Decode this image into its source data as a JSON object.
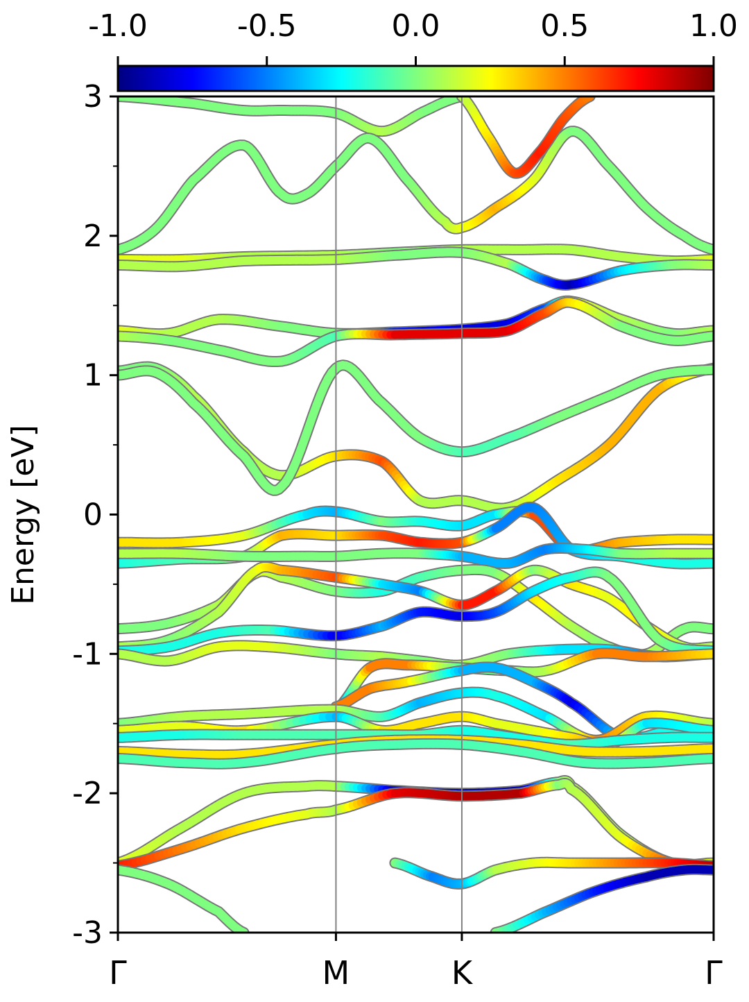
{
  "chart_data": {
    "type": "line",
    "subtype": "band-structure with projected color",
    "ylabel": "Energy [eV]",
    "ylim": [
      -3,
      3
    ],
    "y_ticks": [
      3,
      2,
      1,
      0,
      -1,
      -2,
      -3
    ],
    "y_tick_labels": [
      "3",
      "2",
      "1",
      "0",
      "-1",
      "-2",
      "-3"
    ],
    "x_ticks": [
      0,
      1.732,
      2.732,
      4.732
    ],
    "x_tick_labels": [
      "Γ",
      "M",
      "K",
      "Γ"
    ],
    "xlim": [
      0,
      4.732
    ],
    "high_symmetry_lines": [
      1.732,
      2.732
    ],
    "colorbar": {
      "range": [
        -1.0,
        1.0
      ],
      "ticks": [
        -1.0,
        -0.5,
        0.0,
        0.5,
        1.0
      ],
      "tick_labels": [
        "-1.0",
        "-0.5",
        "0.0",
        "0.5",
        "1.0"
      ],
      "colormap": "jet",
      "stops": [
        "#00007f",
        "#0000ff",
        "#007fff",
        "#00ffff",
        "#7fff7f",
        "#ffff00",
        "#ff7f00",
        "#ff0000",
        "#7f0000"
      ]
    },
    "line_color": "#777777",
    "series": [
      {
        "x": [
          0,
          0.6,
          1.0,
          1.35,
          1.732,
          2.1,
          2.45,
          2.732
        ],
        "y": [
          3.0,
          2.95,
          2.9,
          2.9,
          2.88,
          2.75,
          2.9,
          3.0
        ],
        "c": [
          0.0,
          0.0,
          0.0,
          0.0,
          0.0,
          0.1,
          0.0,
          0.0
        ]
      },
      {
        "x": [
          0,
          0.3,
          0.6,
          1.0,
          1.3,
          1.5,
          1.732,
          2.0,
          2.3,
          2.6,
          2.732,
          3.0,
          3.3,
          3.6,
          3.9,
          4.2,
          4.5,
          4.732
        ],
        "y": [
          1.9,
          2.05,
          2.4,
          2.65,
          2.3,
          2.3,
          2.5,
          2.7,
          2.4,
          2.1,
          2.06,
          2.2,
          2.4,
          2.75,
          2.5,
          2.2,
          2.0,
          1.9
        ],
        "c": [
          0.0,
          0.0,
          0.0,
          0.0,
          0.0,
          0.0,
          0.0,
          0.0,
          0.0,
          0.1,
          0.2,
          0.4,
          0.2,
          0.0,
          0.0,
          0.0,
          0.0,
          0.0
        ]
      },
      {
        "x": [
          2.732,
          2.95,
          3.15,
          3.35,
          3.55,
          3.75
        ],
        "y": [
          3.0,
          2.7,
          2.45,
          2.6,
          2.85,
          3.0
        ],
        "c": [
          0.1,
          0.3,
          0.6,
          0.7,
          0.6,
          0.5
        ]
      },
      {
        "x": [
          0,
          0.5,
          1.0,
          1.732,
          2.2,
          2.732,
          3.2,
          3.6,
          4.0,
          4.4,
          4.732
        ],
        "y": [
          1.83,
          1.83,
          1.85,
          1.86,
          1.88,
          1.9,
          1.9,
          1.9,
          1.85,
          1.82,
          1.83
        ],
        "c": [
          0.2,
          0.2,
          0.1,
          0.1,
          0.0,
          0.1,
          0.1,
          0.1,
          0.1,
          0.1,
          0.2
        ]
      },
      {
        "x": [
          0,
          0.5,
          1.0,
          1.732,
          2.2,
          2.732,
          3.1,
          3.4,
          3.6,
          4.0,
          4.4,
          4.732
        ],
        "y": [
          1.79,
          1.78,
          1.82,
          1.83,
          1.86,
          1.88,
          1.8,
          1.68,
          1.65,
          1.75,
          1.79,
          1.79
        ],
        "c": [
          0.1,
          0.1,
          0.1,
          0.1,
          0.0,
          0.0,
          0.1,
          -0.6,
          -0.9,
          -0.3,
          0.0,
          0.1
        ]
      },
      {
        "x": [
          0,
          0.4,
          0.8,
          1.3,
          1.732,
          2.2,
          2.732,
          3.1,
          3.4,
          3.6,
          4.0,
          4.4,
          4.732
        ],
        "y": [
          1.32,
          1.3,
          1.4,
          1.35,
          1.3,
          1.31,
          1.33,
          1.37,
          1.48,
          1.53,
          1.4,
          1.3,
          1.32
        ],
        "c": [
          0.2,
          0.1,
          0.1,
          0.0,
          0.0,
          -0.7,
          -0.8,
          -0.8,
          -0.6,
          0.2,
          0.1,
          0.0,
          0.1
        ]
      },
      {
        "x": [
          0,
          0.4,
          0.8,
          1.3,
          1.732,
          2.2,
          2.732,
          3.1,
          3.4,
          3.6,
          4.0,
          4.4,
          4.732
        ],
        "y": [
          1.28,
          1.25,
          1.18,
          1.1,
          1.28,
          1.29,
          1.3,
          1.32,
          1.45,
          1.52,
          1.35,
          1.25,
          1.28
        ],
        "c": [
          0.1,
          0.0,
          0.0,
          0.0,
          -0.1,
          0.8,
          0.8,
          0.8,
          0.6,
          0.3,
          0.0,
          0.0,
          0.0
        ]
      },
      {
        "x": [
          0,
          0.3,
          0.6,
          1.0,
          1.3,
          1.732,
          2.1,
          2.4,
          2.732,
          3.1,
          3.5,
          3.9,
          4.3,
          4.732
        ],
        "y": [
          1.03,
          1.05,
          0.85,
          0.45,
          0.28,
          0.42,
          0.38,
          0.1,
          0.1,
          0.05,
          0.25,
          0.5,
          0.9,
          1.05
        ],
        "c": [
          0.0,
          0.0,
          0.1,
          0.1,
          0.1,
          0.3,
          0.6,
          0.1,
          0.1,
          0.1,
          0.3,
          0.4,
          0.4,
          0.1
        ]
      },
      {
        "x": [
          0,
          0.3,
          0.6,
          1.0,
          1.3,
          1.732,
          2.1,
          2.4,
          2.732,
          3.1,
          3.5,
          3.9,
          4.3,
          4.732
        ],
        "y": [
          1.0,
          1.02,
          0.8,
          0.42,
          0.2,
          1.05,
          0.8,
          0.55,
          0.45,
          0.55,
          0.7,
          0.85,
          1.0,
          1.04
        ],
        "c": [
          0.0,
          0.0,
          0.0,
          0.0,
          0.0,
          0.0,
          0.0,
          0.0,
          -0.1,
          -0.1,
          0.0,
          0.0,
          0.0,
          0.0
        ]
      },
      {
        "x": [
          0,
          0.5,
          1.0,
          1.5,
          1.732,
          2.1,
          2.4,
          2.732,
          3.0,
          3.3,
          3.6,
          4.0,
          4.4,
          4.732
        ],
        "y": [
          -0.2,
          -0.2,
          -0.15,
          0.0,
          0.02,
          -0.05,
          -0.05,
          -0.08,
          0.0,
          0.0,
          -0.25,
          -0.2,
          -0.18,
          -0.18
        ],
        "c": [
          0.3,
          0.3,
          0.2,
          -0.3,
          -0.4,
          0.0,
          -0.2,
          -0.3,
          -0.3,
          0.6,
          0.6,
          0.4,
          0.3,
          0.3
        ]
      },
      {
        "x": [
          0,
          0.5,
          1.0,
          1.3,
          1.732,
          2.1,
          2.4,
          2.732,
          3.0,
          3.3,
          3.6,
          4.0,
          4.4,
          4.732
        ],
        "y": [
          -0.35,
          -0.32,
          -0.3,
          -0.15,
          -0.15,
          -0.15,
          -0.2,
          -0.2,
          -0.1,
          0.05,
          -0.25,
          -0.3,
          -0.35,
          -0.35
        ],
        "c": [
          -0.2,
          -0.1,
          0.0,
          0.4,
          0.3,
          0.6,
          0.7,
          0.6,
          -0.5,
          -0.5,
          -0.4,
          -0.2,
          -0.2,
          -0.2
        ]
      },
      {
        "x": [
          0,
          0.5,
          1.0,
          1.5,
          1.732,
          2.1,
          2.4,
          2.732,
          3.1,
          3.4,
          3.7,
          4.0,
          4.4,
          4.732
        ],
        "y": [
          -0.28,
          -0.28,
          -0.3,
          -0.3,
          -0.3,
          -0.28,
          -0.28,
          -0.3,
          -0.35,
          -0.25,
          -0.25,
          -0.28,
          -0.28,
          -0.28
        ],
        "c": [
          0.1,
          0.1,
          0.0,
          0.0,
          0.0,
          0.0,
          0.0,
          -0.4,
          -0.4,
          -0.5,
          -0.3,
          0.0,
          0.1,
          0.1
        ]
      },
      {
        "x": [
          0,
          0.4,
          0.8,
          1.1,
          1.3,
          1.732,
          2.1,
          2.4,
          2.732,
          3.0,
          3.3,
          3.6,
          3.9,
          4.2,
          4.5,
          4.732
        ],
        "y": [
          -0.82,
          -0.78,
          -0.65,
          -0.42,
          -0.45,
          -0.55,
          -0.55,
          -0.45,
          -0.4,
          -0.42,
          -0.6,
          -0.8,
          -0.95,
          -1.0,
          -0.82,
          -0.82
        ],
        "c": [
          0.0,
          0.0,
          0.1,
          0.2,
          0.1,
          0.0,
          -0.2,
          -0.1,
          0.0,
          0.0,
          0.3,
          0.1,
          0.0,
          0.1,
          0.0,
          0.0
        ]
      },
      {
        "x": [
          0,
          0.4,
          0.8,
          1.1,
          1.3,
          1.732,
          2.1,
          2.4,
          2.732,
          3.0,
          3.3,
          3.6,
          3.9,
          4.2,
          4.5,
          4.732
        ],
        "y": [
          -0.95,
          -0.9,
          -0.7,
          -0.4,
          -0.4,
          -0.45,
          -0.5,
          -0.55,
          -0.65,
          -0.55,
          -0.4,
          -0.5,
          -0.6,
          -0.8,
          -0.95,
          -0.95
        ],
        "c": [
          0.1,
          0.0,
          0.1,
          0.2,
          0.4,
          0.6,
          -0.3,
          -0.5,
          0.7,
          0.7,
          0.0,
          0.3,
          0.2,
          0.3,
          0.1,
          0.1
        ]
      },
      {
        "x": [
          0,
          0.4,
          0.8,
          1.2,
          1.732,
          2.1,
          2.4,
          2.732,
          3.0,
          3.3,
          3.6,
          3.9,
          4.3,
          4.732
        ],
        "y": [
          -0.98,
          -0.95,
          -0.85,
          -0.83,
          -0.87,
          -0.8,
          -0.7,
          -0.73,
          -0.7,
          -0.55,
          -0.45,
          -0.45,
          -0.9,
          -0.98
        ],
        "c": [
          -0.2,
          -0.2,
          -0.2,
          -0.1,
          -0.8,
          -0.4,
          -0.7,
          -0.8,
          -0.6,
          -0.3,
          -0.2,
          0.0,
          0.0,
          -0.2
        ]
      },
      {
        "x": [
          0,
          0.4,
          0.8,
          1.2,
          1.732,
          2.1,
          2.4,
          2.732,
          3.1,
          3.5,
          3.9,
          4.3,
          4.732
        ],
        "y": [
          -1.0,
          -1.05,
          -0.95,
          -0.95,
          -1.0,
          -1.02,
          -1.05,
          -1.08,
          -1.0,
          -0.97,
          -0.97,
          -1.02,
          -1.0
        ],
        "c": [
          0.1,
          0.1,
          0.2,
          0.2,
          0.0,
          0.1,
          0.0,
          0.1,
          0.0,
          -0.3,
          -0.3,
          -0.6,
          0.0
        ]
      },
      {
        "x": [
          1.732,
          2.0,
          2.3,
          2.732,
          3.1,
          3.4,
          3.8,
          4.2,
          4.732
        ],
        "y": [
          -1.4,
          -1.1,
          -1.08,
          -1.1,
          -1.12,
          -1.12,
          -1.0,
          -1.02,
          -1.0
        ],
        "c": [
          -0.6,
          0.5,
          0.5,
          -0.1,
          0.0,
          0.1,
          0.5,
          0.5,
          0.3
        ]
      },
      {
        "x": [
          1.732,
          2.0,
          2.3,
          2.732,
          3.0,
          3.3,
          3.6,
          4.0,
          4.4,
          4.732
        ],
        "y": [
          -1.38,
          -1.25,
          -1.2,
          -1.12,
          -1.1,
          -1.2,
          -1.35,
          -1.6,
          -1.55,
          -1.55
        ],
        "c": [
          0.5,
          0.5,
          0.3,
          -0.4,
          -0.4,
          -0.4,
          -0.8,
          -0.3,
          -0.2,
          -0.2
        ]
      },
      {
        "x": [
          0,
          0.5,
          1.0,
          1.732,
          2.1,
          2.4,
          2.732,
          3.0,
          3.4,
          3.8,
          4.2,
          4.732
        ],
        "y": [
          -1.5,
          -1.45,
          -1.43,
          -1.4,
          -1.45,
          -1.35,
          -1.28,
          -1.3,
          -1.45,
          -1.62,
          -1.45,
          -1.5
        ],
        "c": [
          0.0,
          0.1,
          0.1,
          0.1,
          -0.1,
          -0.4,
          -0.3,
          -0.2,
          -0.3,
          0.5,
          0.3,
          0.1
        ]
      },
      {
        "x": [
          0,
          0.5,
          1.0,
          1.732,
          2.1,
          2.4,
          2.732,
          3.0,
          3.3,
          3.6,
          3.9,
          4.2,
          4.732
        ],
        "y": [
          -1.55,
          -1.52,
          -1.55,
          -1.45,
          -1.55,
          -1.5,
          -1.45,
          -1.5,
          -1.55,
          -1.6,
          -1.65,
          -1.5,
          -1.55
        ],
        "c": [
          0.2,
          0.2,
          0.3,
          -0.4,
          0.3,
          0.3,
          0.3,
          0.2,
          0.2,
          0.3,
          0.5,
          -0.3,
          -0.2
        ]
      },
      {
        "x": [
          0,
          0.5,
          1.0,
          1.732,
          2.1,
          2.4,
          2.732,
          3.0,
          3.3,
          3.6,
          4.0,
          4.4,
          4.732
        ],
        "y": [
          -1.6,
          -1.58,
          -1.58,
          -1.58,
          -1.58,
          -1.58,
          -1.55,
          -1.58,
          -1.62,
          -1.65,
          -1.62,
          -1.6,
          -1.6
        ],
        "c": [
          -0.2,
          -0.2,
          -0.1,
          -0.1,
          -0.1,
          -0.1,
          -0.2,
          -0.2,
          -0.2,
          -0.1,
          -0.2,
          -0.2,
          -0.2
        ]
      },
      {
        "x": [
          0,
          0.5,
          1.0,
          1.732,
          2.2,
          2.732,
          3.2,
          3.7,
          4.2,
          4.732
        ],
        "y": [
          -1.7,
          -1.72,
          -1.72,
          -1.65,
          -1.62,
          -1.62,
          -1.65,
          -1.7,
          -1.7,
          -1.68
        ],
        "c": [
          0.3,
          0.3,
          0.3,
          0.3,
          0.3,
          0.3,
          0.3,
          0.3,
          0.3,
          0.3
        ]
      },
      {
        "x": [
          0,
          0.5,
          1.0,
          1.732,
          2.2,
          2.732,
          3.2,
          3.7,
          4.2,
          4.732
        ],
        "y": [
          -1.75,
          -1.78,
          -1.78,
          -1.68,
          -1.65,
          -1.65,
          -1.7,
          -1.78,
          -1.78,
          -1.75
        ],
        "c": [
          -0.1,
          -0.1,
          -0.1,
          -0.1,
          -0.1,
          -0.1,
          -0.1,
          -0.1,
          -0.1,
          -0.1
        ]
      },
      {
        "x": [
          0,
          0.5,
          1.0,
          1.5,
          1.732,
          2.2,
          2.732,
          3.2,
          3.5,
          3.6,
          4.0,
          4.4,
          4.732
        ],
        "y": [
          -2.5,
          -2.25,
          -2.0,
          -1.95,
          -1.95,
          -1.98,
          -2.0,
          -1.98,
          -1.92,
          -1.95,
          -2.3,
          -2.5,
          -2.5
        ],
        "c": [
          0.2,
          0.1,
          0.1,
          0.1,
          0.1,
          -0.9,
          -0.9,
          -0.9,
          0.0,
          0.1,
          0.1,
          0.2,
          0.2
        ]
      },
      {
        "x": [
          0,
          0.5,
          1.0,
          1.5,
          1.732,
          2.2,
          2.732,
          3.2,
          3.5,
          3.6,
          4.0,
          4.4,
          4.732
        ],
        "y": [
          -2.52,
          -2.4,
          -2.25,
          -2.15,
          -2.12,
          -2.0,
          -2.02,
          -2.0,
          -1.94,
          -1.97,
          -2.32,
          -2.5,
          -2.52
        ],
        "c": [
          0.7,
          0.5,
          0.3,
          0.2,
          0.1,
          0.8,
          0.9,
          0.9,
          0.0,
          0.1,
          0.2,
          0.6,
          0.8
        ]
      },
      {
        "x": [
          2.2,
          2.5,
          2.732,
          3.0,
          3.3,
          3.6,
          4.0,
          4.4,
          4.732
        ],
        "y": [
          -2.5,
          -2.6,
          -2.65,
          -2.55,
          -2.5,
          -2.5,
          -2.5,
          -2.5,
          -2.52
        ],
        "c": [
          0.0,
          -0.5,
          -0.4,
          0.1,
          0.2,
          0.3,
          0.5,
          0.7,
          0.9
        ]
      },
      {
        "x": [
          3.0,
          3.4,
          3.8,
          4.2,
          4.5,
          4.732
        ],
        "y": [
          -3.0,
          -2.85,
          -2.7,
          -2.6,
          -2.55,
          -2.55
        ],
        "c": [
          0.0,
          -0.4,
          -0.7,
          -0.9,
          -0.9,
          -0.9
        ]
      },
      {
        "x": [
          0,
          0.4,
          0.8,
          1.0
        ],
        "y": [
          -2.55,
          -2.65,
          -2.85,
          -3.0
        ],
        "c": [
          0.0,
          0.0,
          0.0,
          0.0
        ]
      }
    ]
  }
}
